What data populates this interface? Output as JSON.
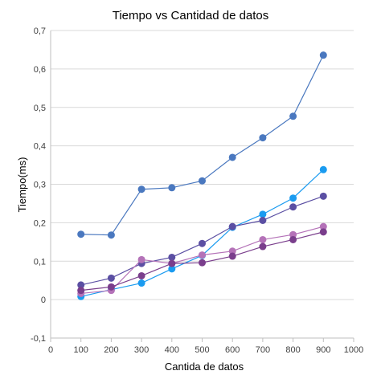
{
  "chart_data": {
    "type": "scatter",
    "title": "Tiempo vs Cantidad de datos",
    "xlabel": "Cantida de datos",
    "ylabel": "Tiempo(ms)",
    "xlim": [
      0,
      1000
    ],
    "ylim": [
      -0.1,
      0.7
    ],
    "xticks": [
      0,
      100,
      200,
      300,
      400,
      500,
      600,
      700,
      800,
      900,
      1000
    ],
    "yticks": [
      -0.1,
      0,
      0.1,
      0.2,
      0.3,
      0.4,
      0.5,
      0.6,
      0.7
    ],
    "xtick_labels": [
      "0",
      "100",
      "200",
      "300",
      "400",
      "500",
      "600",
      "700",
      "800",
      "900",
      "1000"
    ],
    "ytick_labels": [
      "-0,1",
      "0",
      "0,1",
      "0,2",
      "0,3",
      "0,4",
      "0,5",
      "0,6",
      "0,7"
    ],
    "grid": "horizontal",
    "legend": "none",
    "series": [
      {
        "color": "#4a78bf",
        "x": [
          100,
          200,
          300,
          400,
          500,
          600,
          700,
          800,
          900
        ],
        "y": [
          0.17,
          0.168,
          0.287,
          0.291,
          0.309,
          0.37,
          0.421,
          0.477,
          0.636
        ]
      },
      {
        "color": "#1a9bf0",
        "x": [
          100,
          200,
          300,
          400,
          500,
          600,
          700,
          800,
          900
        ],
        "y": [
          0.008,
          0.026,
          0.043,
          0.08,
          0.115,
          0.188,
          0.222,
          0.264,
          0.338
        ]
      },
      {
        "color": "#5b4fa3",
        "x": [
          100,
          200,
          300,
          400,
          500,
          600,
          700,
          800,
          900
        ],
        "y": [
          0.038,
          0.056,
          0.094,
          0.11,
          0.146,
          0.19,
          0.206,
          0.241,
          0.269
        ]
      },
      {
        "color": "#b472b8",
        "x": [
          100,
          200,
          300,
          400,
          500,
          600,
          700,
          800,
          900
        ],
        "y": [
          0.016,
          0.024,
          0.104,
          0.094,
          0.116,
          0.126,
          0.156,
          0.169,
          0.19
        ]
      },
      {
        "color": "#7a3e8c",
        "x": [
          100,
          200,
          300,
          400,
          500,
          600,
          700,
          800,
          900
        ],
        "y": [
          0.024,
          0.033,
          0.062,
          0.094,
          0.096,
          0.113,
          0.138,
          0.156,
          0.176
        ]
      }
    ]
  }
}
